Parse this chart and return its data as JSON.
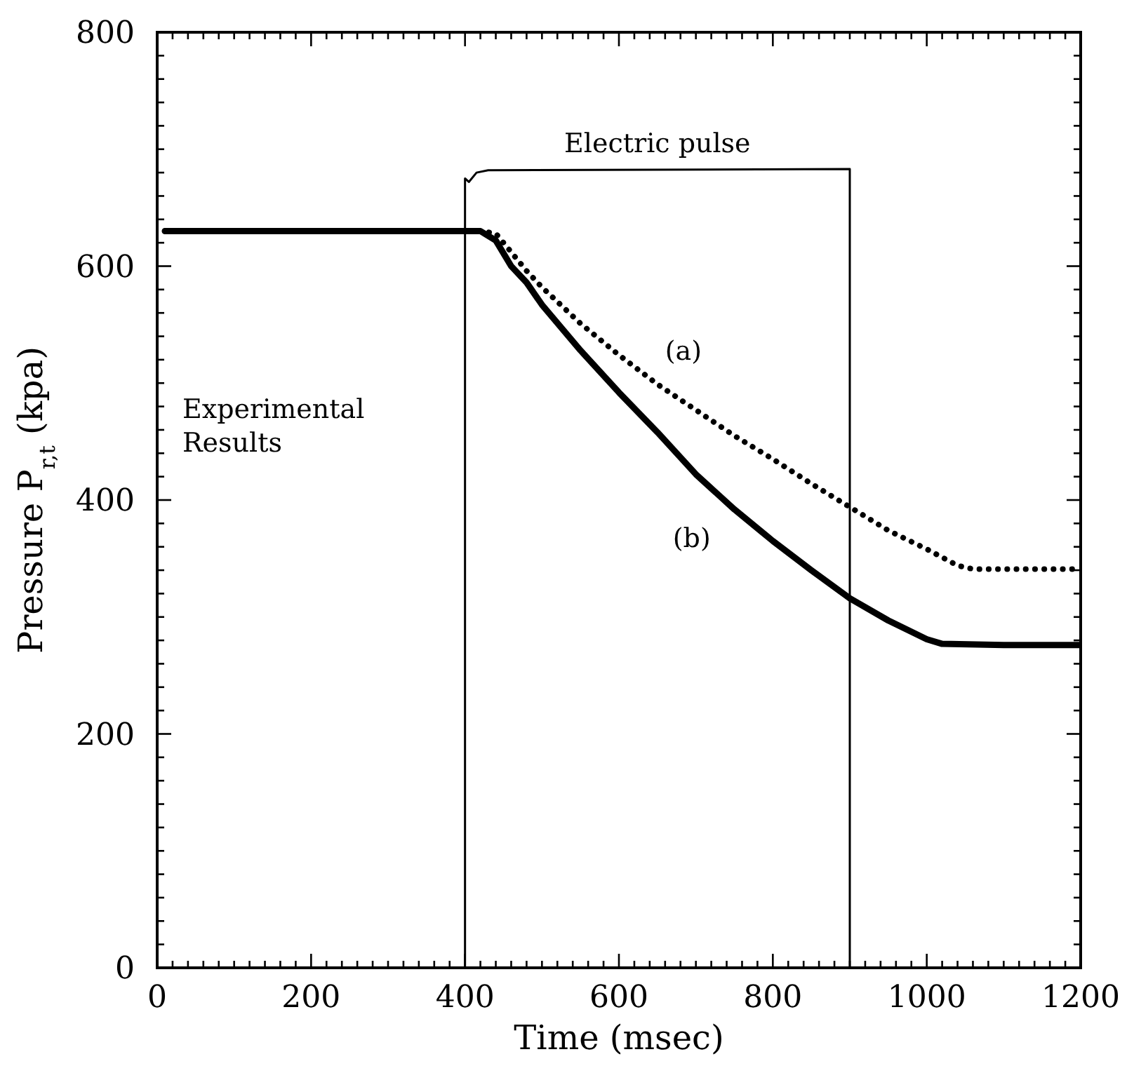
{
  "chart_data": {
    "type": "line",
    "xlabel": "Time (msec)",
    "ylabel": "Pressure P$_{r,t}$ (kpa)",
    "xlim": [
      0,
      1200
    ],
    "ylim": [
      0,
      800
    ],
    "xticks": [
      0,
      {
        "value": 20,
        "label": null
      },
      {
        "value": 40,
        "label": null
      },
      {
        "value": 60,
        "label": null
      },
      {
        "value": 80,
        "label": null
      },
      {
        "value": 100,
        "label": null
      },
      {
        "value": 120,
        "label": null
      },
      {
        "value": 140,
        "label": null
      },
      {
        "value": 160,
        "label": null
      },
      {
        "value": 180,
        "label": null
      },
      200,
      {
        "value": 220,
        "label": null
      },
      {
        "value": 240,
        "label": null
      },
      {
        "value": 260,
        "label": null
      },
      {
        "value": 280,
        "label": null
      },
      {
        "value": 300,
        "label": null
      },
      {
        "value": 320,
        "label": null
      },
      {
        "value": 340,
        "label": null
      },
      {
        "value": 360,
        "label": null
      },
      {
        "value": 380,
        "label": null
      },
      400,
      {
        "value": 420,
        "label": null
      },
      {
        "value": 440,
        "label": null
      },
      {
        "value": 460,
        "label": null
      },
      {
        "value": 480,
        "label": null
      },
      {
        "value": 500,
        "label": null
      },
      {
        "value": 520,
        "label": null
      },
      {
        "value": 540,
        "label": null
      },
      {
        "value": 560,
        "label": null
      },
      {
        "value": 580,
        "label": null
      },
      600,
      {
        "value": 620,
        "label": null
      },
      {
        "value": 640,
        "label": null
      },
      {
        "value": 660,
        "label": null
      },
      {
        "value": 680,
        "label": null
      },
      {
        "value": 700,
        "label": null
      },
      {
        "value": 720,
        "label": null
      },
      {
        "value": 740,
        "label": null
      },
      {
        "value": 760,
        "label": null
      },
      {
        "value": 780,
        "label": null
      },
      800,
      {
        "value": 820,
        "label": null
      },
      {
        "value": 840,
        "label": null
      },
      {
        "value": 860,
        "label": null
      },
      {
        "value": 880,
        "label": null
      },
      {
        "value": 900,
        "label": null
      },
      {
        "value": 920,
        "label": null
      },
      {
        "value": 940,
        "label": null
      },
      {
        "value": 960,
        "label": null
      },
      {
        "value": 980,
        "label": null
      },
      1000,
      {
        "value": 1020,
        "label": null
      },
      {
        "value": 1040,
        "label": null
      },
      {
        "value": 1060,
        "label": null
      },
      {
        "value": 1080,
        "label": null
      },
      {
        "value": 1100,
        "label": null
      },
      {
        "value": 1120,
        "label": null
      },
      {
        "value": 1140,
        "label": null
      },
      {
        "value": 1160,
        "label": null
      },
      {
        "value": 1180,
        "label": null
      },
      1200
    ],
    "yticks": [
      0,
      {
        "value": 20,
        "label": null
      },
      {
        "value": 40,
        "label": null
      },
      {
        "value": 60,
        "label": null
      },
      {
        "value": 80,
        "label": null
      },
      {
        "value": 100,
        "label": null
      },
      {
        "value": 120,
        "label": null
      },
      {
        "value": 140,
        "label": null
      },
      {
        "value": 160,
        "label": null
      },
      {
        "value": 180,
        "label": null
      },
      200,
      {
        "value": 220,
        "label": null
      },
      {
        "value": 240,
        "label": null
      },
      {
        "value": 260,
        "label": null
      },
      {
        "value": 280,
        "label": null
      },
      {
        "value": 300,
        "label": null
      },
      {
        "value": 320,
        "label": null
      },
      {
        "value": 340,
        "label": null
      },
      {
        "value": 360,
        "label": null
      },
      {
        "value": 380,
        "label": null
      },
      400,
      {
        "value": 420,
        "label": null
      },
      {
        "value": 440,
        "label": null
      },
      {
        "value": 460,
        "label": null
      },
      {
        "value": 480,
        "label": null
      },
      {
        "value": 500,
        "label": null
      },
      {
        "value": 520,
        "label": null
      },
      {
        "value": 540,
        "label": null
      },
      {
        "value": 560,
        "label": null
      },
      {
        "value": 580,
        "label": null
      },
      600,
      {
        "value": 620,
        "label": null
      },
      {
        "value": 640,
        "label": null
      },
      {
        "value": 660,
        "label": null
      },
      {
        "value": 680,
        "label": null
      },
      {
        "value": 700,
        "label": null
      },
      {
        "value": 720,
        "label": null
      },
      {
        "value": 740,
        "label": null
      },
      {
        "value": 760,
        "label": null
      },
      {
        "value": 780,
        "label": null
      },
      800
    ],
    "grid": false,
    "series": [
      {
        "name": "Electric pulse",
        "color": "#000000",
        "line_style": "solid",
        "x": [
          400,
          400,
          405,
          415,
          430,
          900,
          900
        ],
        "values": [
          0,
          675,
          672,
          680,
          682,
          683,
          0
        ]
      },
      {
        "name": "(a)",
        "color": "#000000",
        "line_style": "dotted",
        "x": [
          10,
          100,
          200,
          300,
          400,
          420,
          440,
          460,
          480,
          500,
          550,
          600,
          650,
          700,
          750,
          800,
          850,
          900,
          950,
          1000,
          1040,
          1060,
          1100,
          1150,
          1200
        ],
        "values": [
          630,
          630,
          630,
          630,
          630,
          630,
          628,
          612,
          596,
          582,
          551,
          524,
          499,
          477,
          455,
          435,
          414,
          394,
          374,
          358,
          344,
          341,
          341,
          341,
          341
        ]
      },
      {
        "name": "(b)",
        "color": "#000000",
        "line_style": "solid",
        "x": [
          10,
          100,
          200,
          300,
          400,
          420,
          440,
          460,
          480,
          500,
          550,
          600,
          650,
          700,
          750,
          800,
          850,
          900,
          950,
          1000,
          1020,
          1100,
          1150,
          1200
        ],
        "values": [
          630,
          630,
          630,
          630,
          630,
          630,
          622,
          600,
          586,
          567,
          528,
          492,
          458,
          422,
          392,
          365,
          340,
          316,
          297,
          281,
          277,
          276,
          276,
          276
        ]
      }
    ],
    "annotations": [
      "Experimental Results"
    ]
  }
}
